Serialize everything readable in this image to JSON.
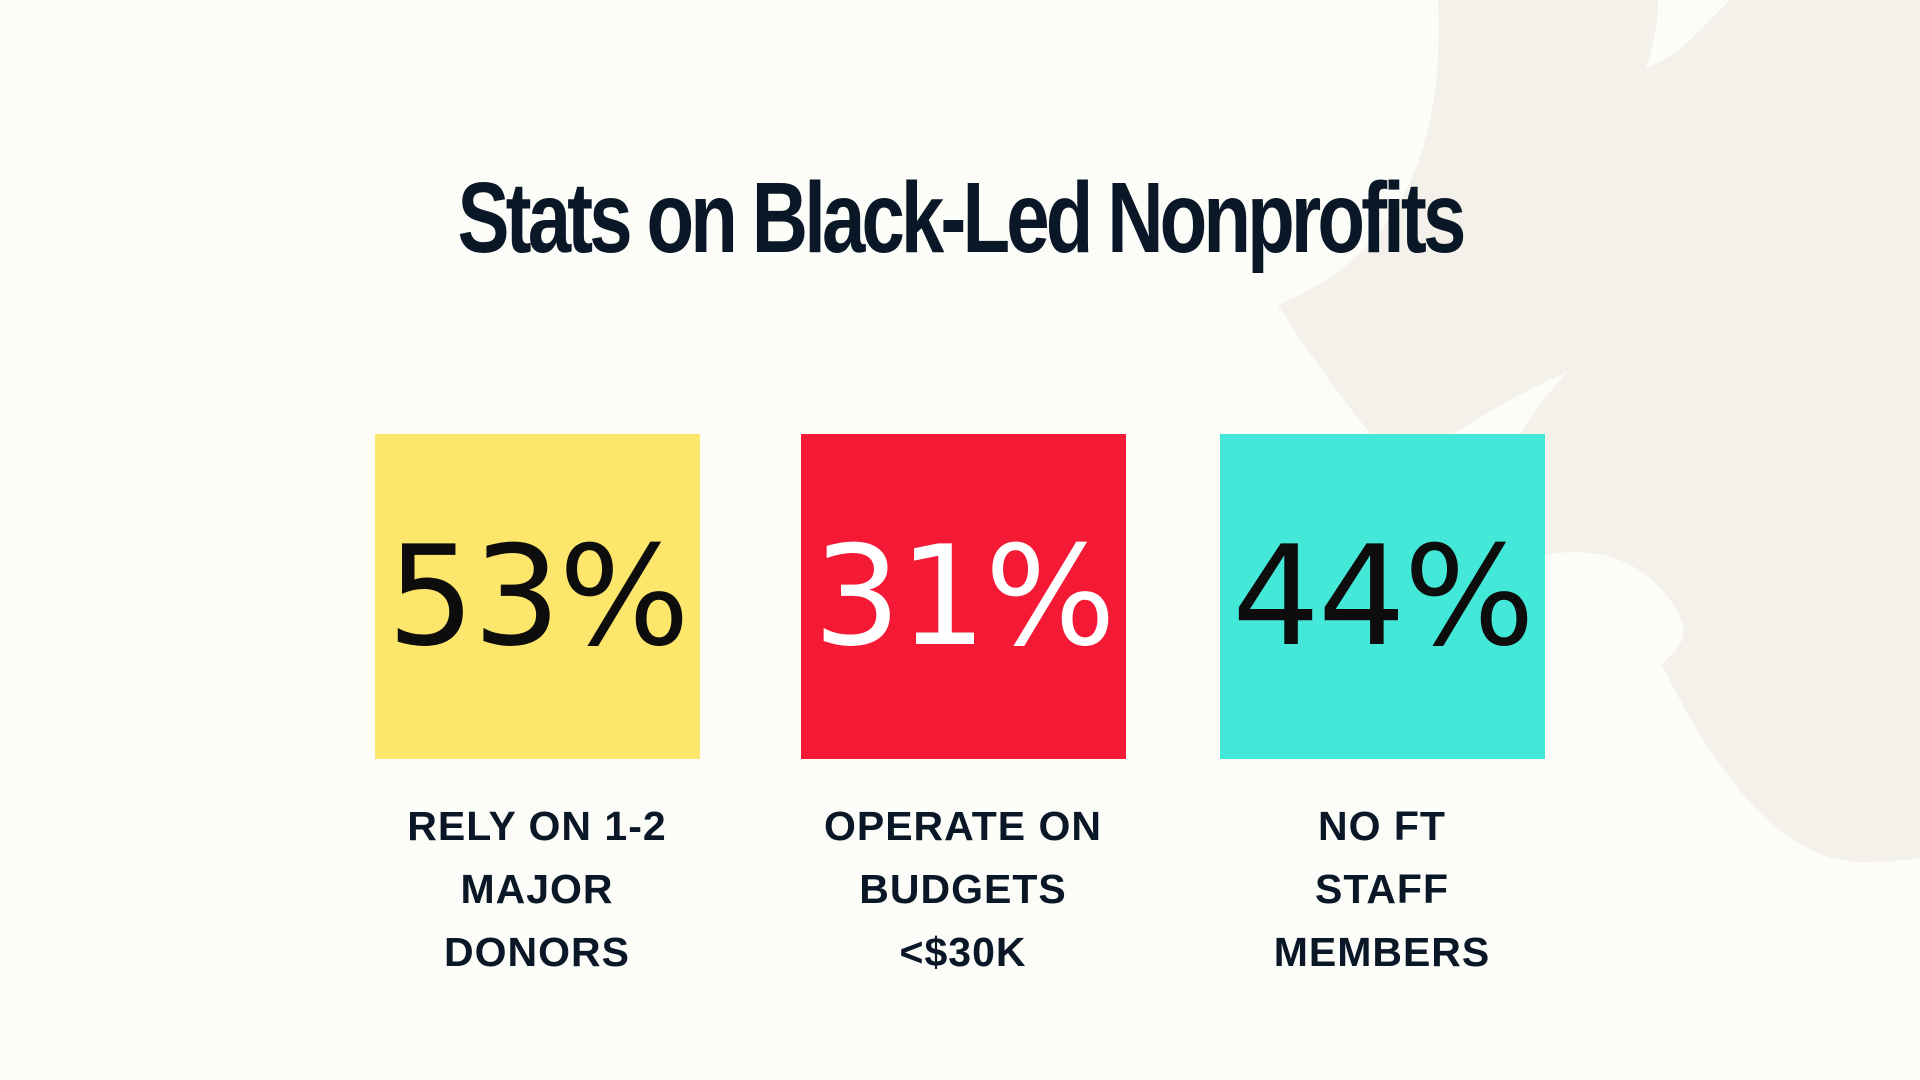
{
  "slide": {
    "title": "Stats on Black-Led Nonprofits",
    "background_color": "#fcfcf9",
    "decor_color": "#f4f1ea",
    "title_color": "#0a1726"
  },
  "stats": [
    {
      "value": "53%",
      "caption": "RELY ON 1-2\nMAJOR\nDONORS",
      "box_color": "#fde66c",
      "value_color": "#0d0d0d"
    },
    {
      "value": "31%",
      "caption": "OPERATE ON\nBUDGETS\n<$30K",
      "box_color": "#f41a36",
      "value_color": "#ffffff"
    },
    {
      "value": "44%",
      "caption": "NO FT\nSTAFF\nMEMBERS",
      "box_color": "#44e8d8",
      "value_color": "#0d0d0d"
    }
  ]
}
